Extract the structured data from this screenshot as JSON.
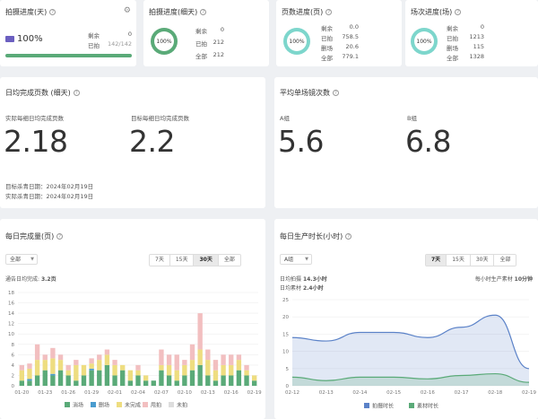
{
  "card1": {
    "title": "拍摄进度(天)",
    "percent": "100%",
    "remain_label": "剩余",
    "remain_value": "0",
    "done_label": "已拍",
    "done_value": "142/142"
  },
  "card2": {
    "title": "拍摄进度(细天)",
    "percent": "100%",
    "rows": [
      {
        "label": "剩余",
        "value": "0"
      },
      {
        "label": "已拍",
        "value": "212"
      },
      {
        "label": "全部",
        "value": "212"
      }
    ]
  },
  "card3": {
    "title": "页数进度(页)",
    "percent": "100%",
    "rows": [
      {
        "label": "剩余",
        "value": "0.0"
      },
      {
        "label": "已拍",
        "value": "758.5"
      },
      {
        "label": "删场",
        "value": "20.6"
      },
      {
        "label": "全部",
        "value": "779.1"
      }
    ]
  },
  "card4": {
    "title": "场次进度(场)",
    "percent": "100%",
    "rows": [
      {
        "label": "剩余",
        "value": "0"
      },
      {
        "label": "已拍",
        "value": "1213"
      },
      {
        "label": "删场",
        "value": "115"
      },
      {
        "label": "全部",
        "value": "1328"
      }
    ]
  },
  "daily": {
    "title": "日均完成页数 (细天)",
    "actual_label": "实际每细日均完成页数",
    "actual_value": "2.18",
    "target_label": "目标每细日均完成页数",
    "target_value": "2.2",
    "target_end": "目标杀青日期：2024年02月19日",
    "actual_end": "实际杀青日期：2024年02月19日"
  },
  "avg": {
    "title": "平均单场镜次数",
    "a_label": "A组",
    "a_value": "5.6",
    "b_label": "B组",
    "b_value": "6.8"
  },
  "pages": {
    "title": "每日完成量(页)",
    "select": "全部",
    "ranges": [
      "7天",
      "15天",
      "30天",
      "全部"
    ],
    "active_range": "30天",
    "note_prefix": "通告日均完成:",
    "note_value": "3.2页",
    "legend": [
      "消场",
      "删场",
      "未完成",
      "甩拍",
      "未拍"
    ]
  },
  "hours": {
    "title": "每日生产时长(小时)",
    "select": "A组",
    "ranges": [
      "7天",
      "15天",
      "30天",
      "全部"
    ],
    "active_range": "7天",
    "shoot_label": "日均拍摄",
    "shoot_value": "14.3小时",
    "material_label": "日均素材",
    "material_value": "2.4小时",
    "per_hour_label": "每小时生产素材",
    "per_hour_value": "10分钟",
    "legend": [
      "拍摄时长",
      "素材时长"
    ]
  },
  "chart_data": [
    {
      "type": "bar",
      "stacked": true,
      "categories": [
        "01-20",
        "01-21",
        "01-22",
        "01-23",
        "01-24",
        "01-25",
        "01-26",
        "01-27",
        "01-28",
        "01-29",
        "01-30",
        "01-31",
        "02-01",
        "02-02",
        "02-03",
        "02-04",
        "02-05",
        "02-06",
        "02-07",
        "02-08",
        "02-09",
        "02-10",
        "02-11",
        "02-12",
        "02-13",
        "02-14",
        "02-15",
        "02-16",
        "02-17",
        "02-18",
        "02-19"
      ],
      "tick_labels": [
        "01-20",
        "01-23",
        "01-26",
        "01-29",
        "02-01",
        "02-04",
        "02-07",
        "02-10",
        "02-13",
        "02-16",
        "02-19"
      ],
      "ylim": [
        0,
        18
      ],
      "yticks": [
        0,
        2,
        4,
        6,
        8,
        10,
        12,
        14,
        16,
        18
      ],
      "series": [
        {
          "name": "消场",
          "color": "#5aaa78",
          "values": [
            1,
            1,
            2,
            3,
            2,
            3,
            2,
            1,
            2,
            3,
            3,
            4,
            2,
            3,
            1,
            2,
            1,
            1,
            3,
            2,
            1,
            2,
            3,
            4,
            2,
            1,
            2,
            2,
            3,
            2,
            1
          ]
        },
        {
          "name": "删场",
          "color": "#4a9ccf",
          "values": [
            0,
            0.3,
            0,
            0,
            0.3,
            0,
            0,
            0,
            0,
            0.3,
            0,
            0,
            0,
            0,
            0,
            0,
            0,
            0,
            0,
            0,
            0,
            0,
            0,
            0,
            0,
            0,
            0,
            0,
            0,
            0,
            0
          ]
        },
        {
          "name": "未完成",
          "color": "#eedd80",
          "values": [
            2,
            2,
            3,
            2,
            3,
            2,
            1,
            3,
            2,
            1,
            2,
            2,
            2,
            1,
            2,
            1,
            1,
            0,
            1,
            2,
            2,
            2,
            2,
            3,
            3,
            2,
            2,
            2,
            2,
            1,
            1
          ]
        },
        {
          "name": "甩拍",
          "color": "#f2bfc0",
          "values": [
            1,
            1,
            3,
            1,
            2,
            1,
            1,
            1,
            0,
            1,
            1,
            1,
            1,
            0,
            0,
            1,
            0,
            0,
            3,
            2,
            3,
            1,
            3,
            7,
            2,
            2,
            2,
            2,
            1,
            1,
            0
          ]
        },
        {
          "name": "未拍",
          "color": "#dddddd",
          "values": [
            0,
            0,
            0,
            0,
            0,
            0,
            0,
            0,
            0,
            0,
            0,
            0,
            0,
            0,
            0,
            0,
            0,
            0,
            0,
            0,
            0,
            0,
            0,
            0,
            0,
            0,
            0,
            0,
            0,
            0,
            0
          ]
        }
      ]
    },
    {
      "type": "area",
      "categories": [
        "02-12",
        "02-13",
        "02-14",
        "02-15",
        "02-16",
        "02-17",
        "02-18",
        "02-19"
      ],
      "ylim": [
        0,
        25
      ],
      "yticks": [
        0,
        5,
        10,
        15,
        20,
        25
      ],
      "series": [
        {
          "name": "拍摄时长",
          "color": "#5b82c8",
          "values": [
            14,
            13,
            15.5,
            15.5,
            14,
            17,
            20.5,
            5
          ]
        },
        {
          "name": "素材时长",
          "color": "#5aaa78",
          "values": [
            2.5,
            1.5,
            2.5,
            2.5,
            2,
            3,
            3.5,
            1
          ]
        }
      ]
    }
  ],
  "colors": {
    "green": "#5aaa78",
    "teal": "#7dd6cc",
    "blue": "#5b82c8"
  }
}
